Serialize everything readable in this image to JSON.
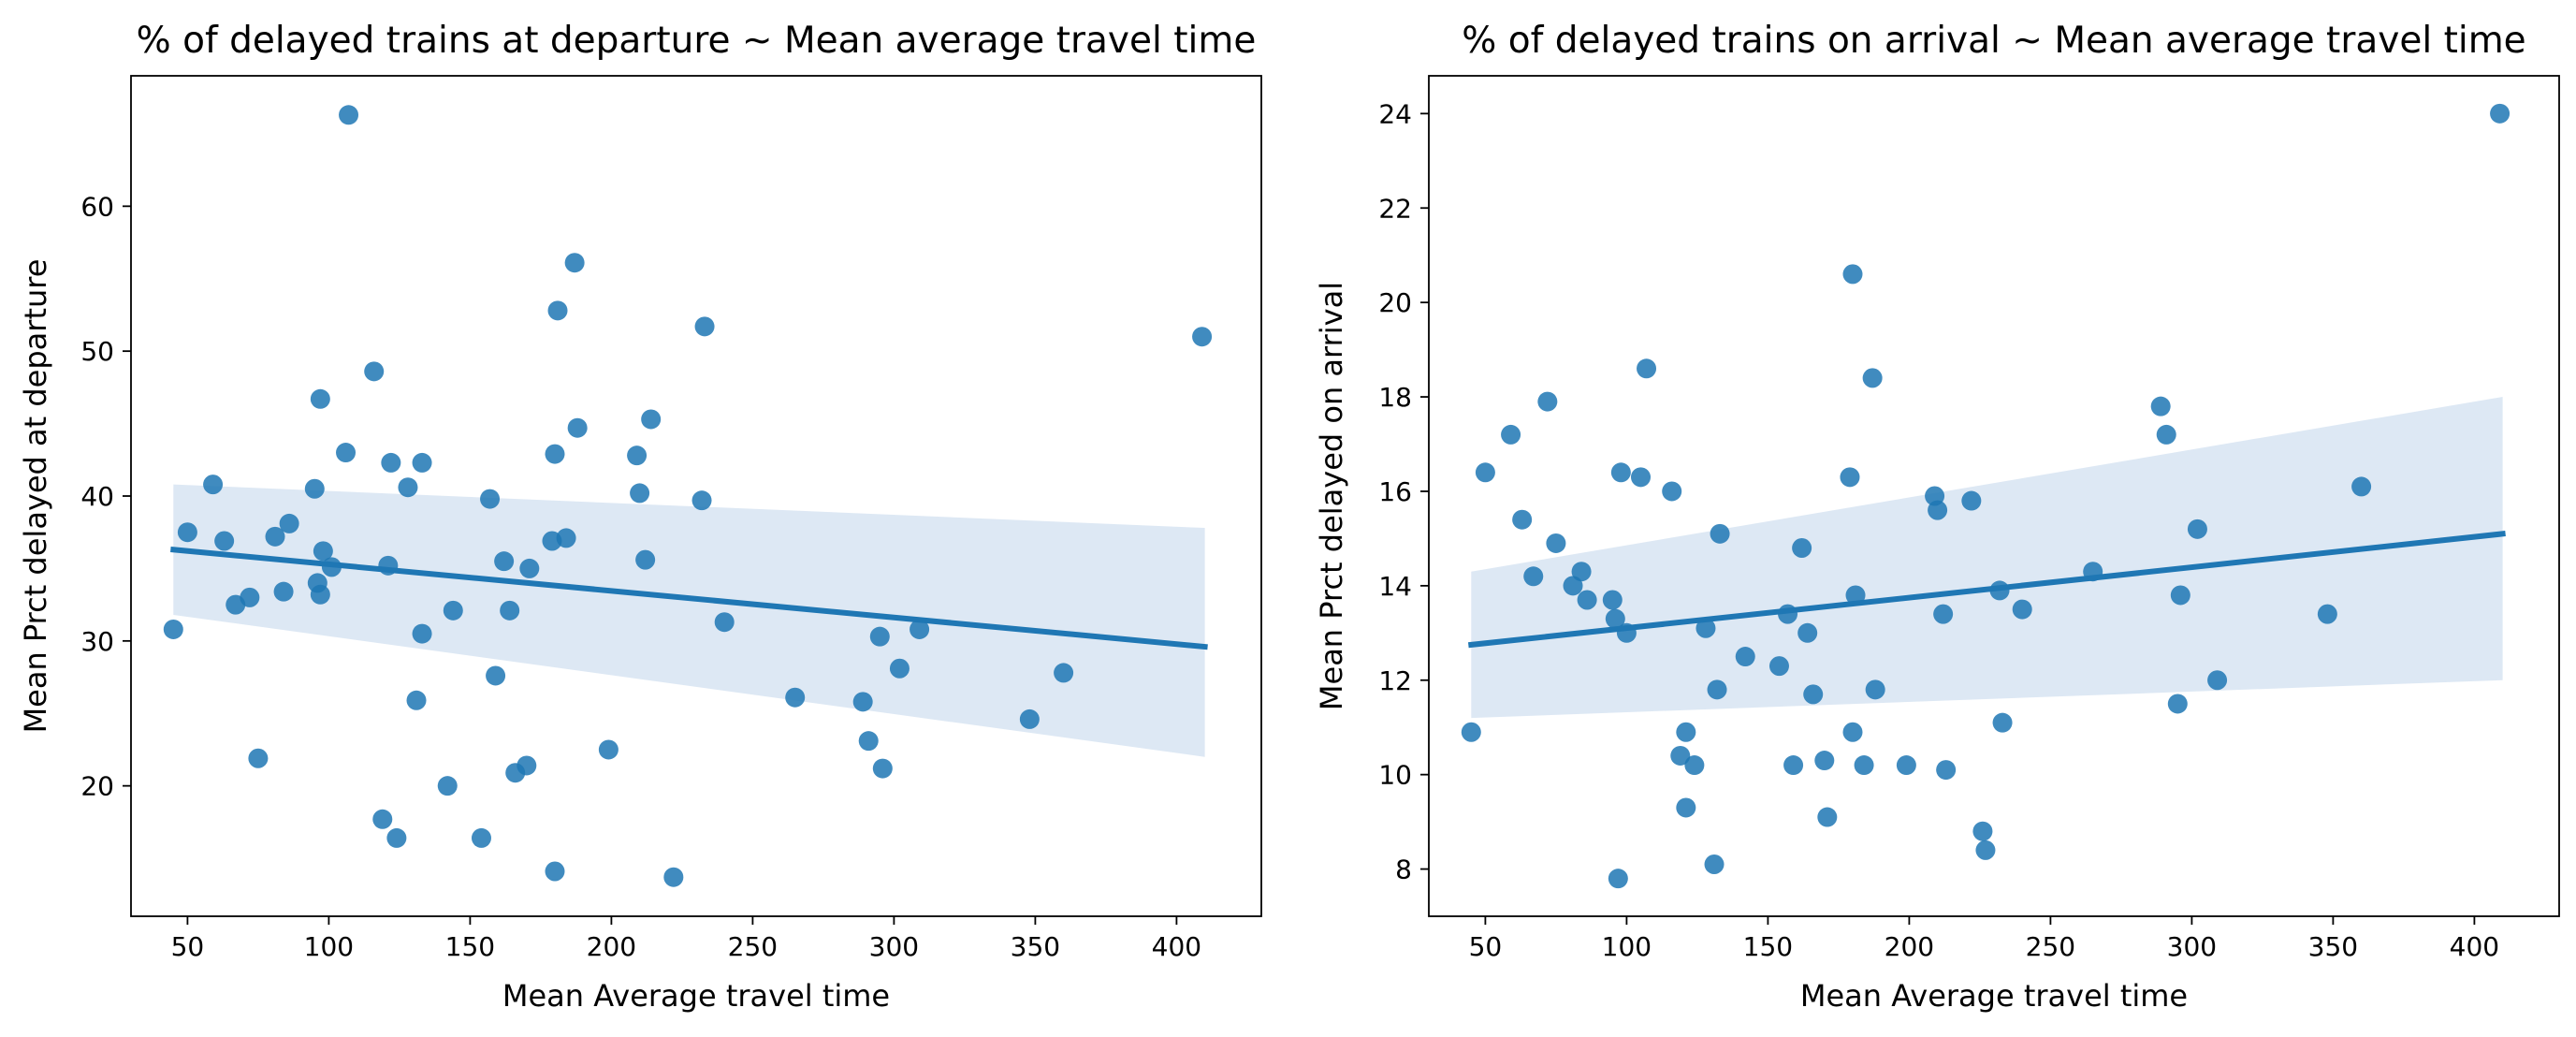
{
  "figure": {
    "background": "#ffffff",
    "point_color": "#1f77b4",
    "line_color": "#1f77b4",
    "band_color": "#c6d8ec"
  },
  "chart_data": [
    {
      "type": "scatter",
      "title": "% of delayed trains at departure ~ Mean average travel time",
      "xlabel": "Mean Average travel time",
      "ylabel": "Mean Prct delayed at departure",
      "xlim": [
        30,
        430
      ],
      "ylim": [
        11,
        69
      ],
      "xticks": [
        50,
        100,
        150,
        200,
        250,
        300,
        350,
        400
      ],
      "yticks": [
        20,
        30,
        40,
        50,
        60
      ],
      "grid": false,
      "legend": "none",
      "regression": {
        "x": [
          45,
          410
        ],
        "y": [
          36.3,
          29.6
        ]
      },
      "ci_band": {
        "x": [
          45,
          410
        ],
        "upper": [
          40.8,
          37.8
        ],
        "lower": [
          31.8,
          22.0
        ]
      },
      "series": [
        {
          "x": [
            45,
            50,
            59,
            63,
            67,
            72,
            75,
            81,
            84,
            86,
            95,
            96,
            97,
            97,
            98,
            101,
            106,
            107,
            116,
            119,
            121,
            122,
            124,
            128,
            131,
            133,
            133,
            142,
            144,
            154,
            157,
            159,
            162,
            164,
            166,
            170,
            171,
            179,
            180,
            180,
            181,
            184,
            187,
            188,
            199,
            209,
            210,
            212,
            214,
            222,
            232,
            233,
            240,
            265,
            289,
            291,
            295,
            296,
            302,
            309,
            348,
            360,
            409
          ],
          "y": [
            30.8,
            37.5,
            40.8,
            36.9,
            32.5,
            33.0,
            21.9,
            37.2,
            33.4,
            38.1,
            40.5,
            34.0,
            33.2,
            46.7,
            36.2,
            35.1,
            43.0,
            66.3,
            48.6,
            17.7,
            35.2,
            42.3,
            16.4,
            40.6,
            25.9,
            30.5,
            42.3,
            20.0,
            32.1,
            16.4,
            39.8,
            27.6,
            35.5,
            32.1,
            20.9,
            21.4,
            35.0,
            36.9,
            42.9,
            14.1,
            52.8,
            37.1,
            56.1,
            44.7,
            22.5,
            42.8,
            40.2,
            35.6,
            45.3,
            13.7,
            39.7,
            51.7,
            31.3,
            26.1,
            25.8,
            23.1,
            30.3,
            21.2,
            28.1,
            30.8,
            24.6,
            27.8,
            51.0
          ]
        }
      ]
    },
    {
      "type": "scatter",
      "title": "% of delayed trains on arrival ~ Mean average travel time",
      "xlabel": "Mean Average travel time",
      "ylabel": "Mean Prct delayed on arrival",
      "xlim": [
        30,
        430
      ],
      "ylim": [
        7.0,
        24.8
      ],
      "xticks": [
        50,
        100,
        150,
        200,
        250,
        300,
        350,
        400
      ],
      "yticks": [
        8,
        10,
        12,
        14,
        16,
        18,
        20,
        22,
        24
      ],
      "grid": false,
      "legend": "none",
      "regression": {
        "x": [
          45,
          410
        ],
        "y": [
          12.75,
          15.1
        ]
      },
      "ci_band": {
        "x": [
          45,
          410
        ],
        "upper": [
          14.3,
          18.0
        ],
        "lower": [
          11.2,
          12.0
        ]
      },
      "series": [
        {
          "x": [
            45,
            50,
            59,
            63,
            67,
            72,
            75,
            81,
            84,
            86,
            95,
            96,
            97,
            98,
            100,
            105,
            107,
            116,
            119,
            121,
            121,
            124,
            128,
            131,
            132,
            133,
            142,
            154,
            157,
            159,
            162,
            164,
            166,
            170,
            171,
            179,
            180,
            180,
            181,
            184,
            187,
            188,
            199,
            209,
            210,
            212,
            213,
            222,
            226,
            227,
            232,
            233,
            240,
            265,
            289,
            291,
            295,
            296,
            302,
            309,
            348,
            360,
            409
          ],
          "y": [
            10.9,
            16.4,
            17.2,
            15.4,
            14.2,
            17.9,
            14.9,
            14.0,
            14.3,
            13.7,
            13.7,
            13.3,
            7.8,
            16.4,
            13.0,
            16.3,
            18.6,
            16.0,
            10.4,
            9.3,
            10.9,
            10.2,
            13.1,
            8.1,
            11.8,
            15.1,
            12.5,
            12.3,
            13.4,
            10.2,
            14.8,
            13.0,
            11.7,
            10.3,
            9.1,
            16.3,
            10.9,
            20.6,
            13.8,
            10.2,
            18.4,
            11.8,
            10.2,
            15.9,
            15.6,
            13.4,
            10.1,
            15.8,
            8.8,
            8.4,
            13.9,
            11.1,
            13.5,
            14.3,
            17.8,
            17.2,
            11.5,
            13.8,
            15.2,
            12.0,
            13.4,
            16.1,
            24.0
          ]
        }
      ]
    }
  ]
}
